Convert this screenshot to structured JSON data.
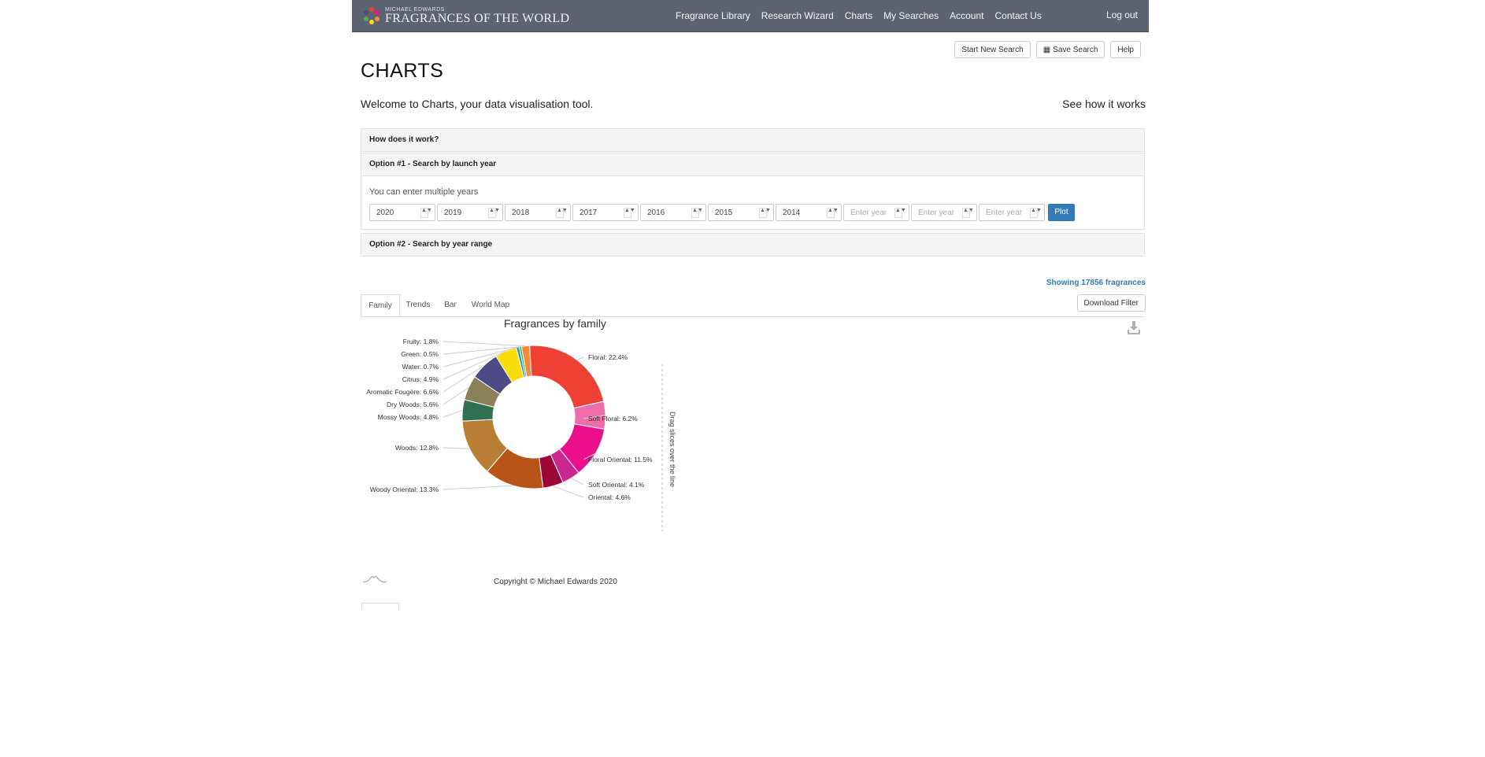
{
  "nav": {
    "logo_small": "MICHAEL EDWARDS",
    "logo_big": "FRAGRANCES OF THE WORLD",
    "items": [
      "Fragrance Library",
      "Research Wizard",
      "Charts",
      "My Searches",
      "Account",
      "Contact Us"
    ],
    "logout": "Log out"
  },
  "toolbar": {
    "start_new_search": "Start New Search",
    "save_search": "Save Search",
    "help": "Help"
  },
  "page": {
    "title": "CHARTS",
    "welcome": "Welcome to Charts, your data visualisation tool.",
    "see_how": "See how it works"
  },
  "panels": {
    "how": "How does it work?",
    "option1": "Option #1 - Search by launch year",
    "option1_hint": "You can enter multiple years",
    "years": [
      "2020",
      "2019",
      "2018",
      "2017",
      "2016",
      "2015",
      "2014"
    ],
    "year_placeholder": "Enter year",
    "plot": "Plot",
    "option2": "Option #2 - Search by year range"
  },
  "showing": "Showing 17856 fragrances",
  "tabs": [
    "Family",
    "Trends",
    "Bar",
    "World Map"
  ],
  "download_filter": "Download Filter",
  "drag_hint": "Drag slices over the line",
  "copyright": "Copyright © Michael Edwards 2020",
  "icons": {
    "save": "table-icon",
    "download": "download-icon",
    "logo": "logo-icon"
  },
  "chart_data": {
    "type": "pie",
    "donut": true,
    "title": "Fragrances by family",
    "slices": [
      {
        "label": "Floral",
        "value": 22.4,
        "color": "#ee4035"
      },
      {
        "label": "Soft Floral",
        "value": 6.2,
        "color": "#f06dab"
      },
      {
        "label": "Floral Oriental",
        "value": 11.5,
        "color": "#ec0f8c"
      },
      {
        "label": "Soft Oriental",
        "value": 4.1,
        "color": "#c8288f"
      },
      {
        "label": "Oriental",
        "value": 4.6,
        "color": "#9b0636"
      },
      {
        "label": "Woody Oriental",
        "value": 13.3,
        "color": "#b85418"
      },
      {
        "label": "Woods",
        "value": 12.8,
        "color": "#b87e35"
      },
      {
        "label": "Mossy Woods",
        "value": 4.8,
        "color": "#2f7053"
      },
      {
        "label": "Dry Woods",
        "value": 5.6,
        "color": "#8b8156"
      },
      {
        "label": "Aromatic Fougère",
        "value": 6.6,
        "color": "#4e4a86"
      },
      {
        "label": "Citrus",
        "value": 4.9,
        "color": "#fadc0b"
      },
      {
        "label": "Water",
        "value": 0.7,
        "color": "#1aa3b8"
      },
      {
        "label": "Green",
        "value": 0.5,
        "color": "#4fad48"
      },
      {
        "label": "Fruity",
        "value": 1.8,
        "color": "#f58a3c"
      }
    ]
  }
}
